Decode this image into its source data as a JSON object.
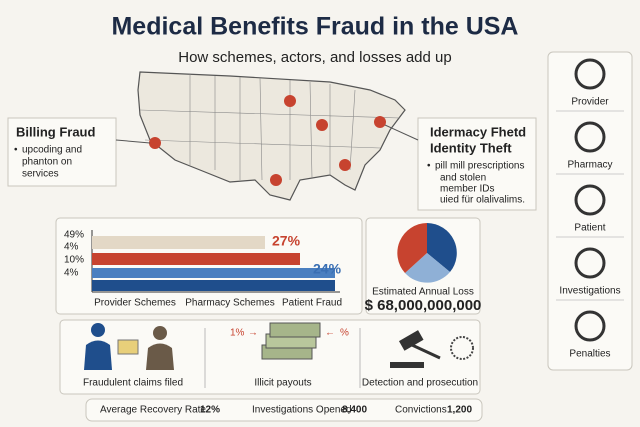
{
  "header": {
    "title": "Medical Benefits Fraud in the USA",
    "subtitle": "How schemes, actors, and losses add up"
  },
  "billing": {
    "title": "Billing Fraud",
    "items": [
      "upcoding and",
      "phanton on",
      "services"
    ]
  },
  "identity": {
    "title": [
      "Idermacy Fhetd",
      "Identity Theft"
    ],
    "items": [
      "pill mill prescriptions",
      "and stolen",
      "member IDs",
      "uied für olalivalims."
    ]
  },
  "bars": {
    "axis_labels": [
      "49%",
      "4%",
      "10%",
      "4%"
    ],
    "value_labels": [
      "27%",
      "24%"
    ],
    "categories": [
      "Provider Schemes",
      "Pharmacy Schemes",
      "Patient Fraud"
    ]
  },
  "loss": {
    "label": "Estimated Annual Loss",
    "amount": "$ 68,000,000,000"
  },
  "steps": {
    "labels": [
      "Fraudulent claims filed",
      "Illicit payouts",
      "Detection and prosecution"
    ],
    "arrow_labels": [
      "1%",
      "%"
    ]
  },
  "stats": [
    {
      "label": "Average Recovery Rate",
      "value": "12%"
    },
    {
      "label": "Investigations Opened",
      "value": "8,400"
    },
    {
      "label": "Convictions",
      "value": "1,200"
    }
  ],
  "sidebar": [
    "Provider",
    "Pharmacy",
    "Patient",
    "Investigations",
    "Penalties"
  ]
}
